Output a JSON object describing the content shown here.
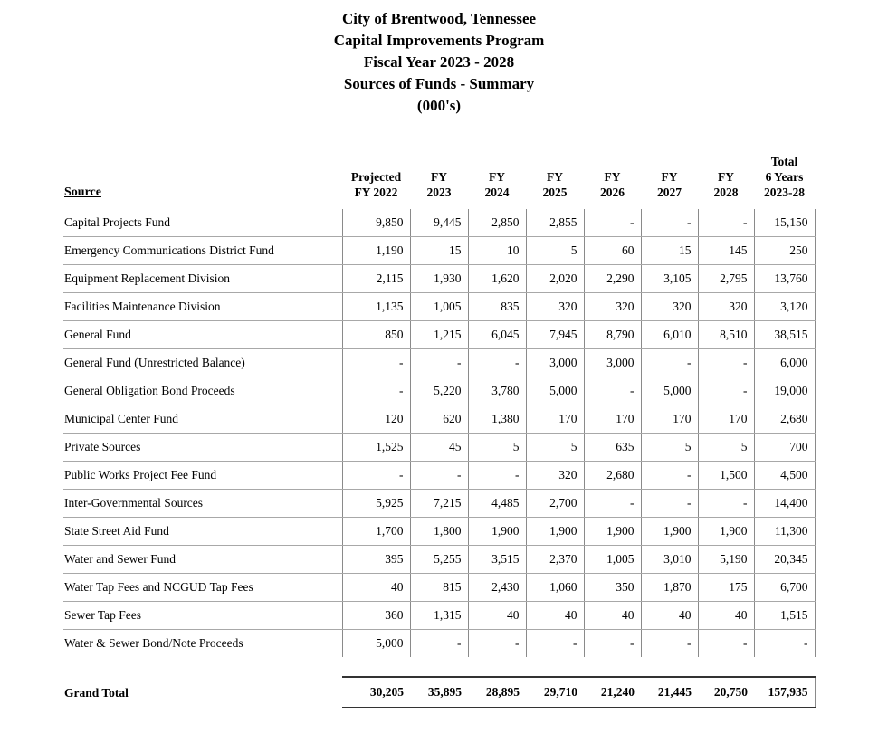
{
  "title": {
    "line1": "City of Brentwood, Tennessee",
    "line2": "Capital Improvements Program",
    "line3": "Fiscal Year 2023 - 2028",
    "line4": "Sources of Funds - Summary",
    "line5": "(000's)"
  },
  "table": {
    "source_header": "Source",
    "columns": [
      [
        "Projected",
        "FY 2022"
      ],
      [
        "FY",
        "2023"
      ],
      [
        "FY",
        "2024"
      ],
      [
        "FY",
        "2025"
      ],
      [
        "FY",
        "2026"
      ],
      [
        "FY",
        "2027"
      ],
      [
        "FY",
        "2028"
      ],
      [
        "Total",
        "6 Years",
        "2023-28"
      ]
    ],
    "rows": [
      {
        "label": "Capital Projects Fund",
        "values": [
          "9,850",
          "9,445",
          "2,850",
          "2,855",
          "-",
          "-",
          "-",
          "15,150"
        ]
      },
      {
        "label": "Emergency Communications District Fund",
        "values": [
          "1,190",
          "15",
          "10",
          "5",
          "60",
          "15",
          "145",
          "250"
        ]
      },
      {
        "label": "Equipment Replacement Division",
        "values": [
          "2,115",
          "1,930",
          "1,620",
          "2,020",
          "2,290",
          "3,105",
          "2,795",
          "13,760"
        ]
      },
      {
        "label": "Facilities Maintenance Division",
        "values": [
          "1,135",
          "1,005",
          "835",
          "320",
          "320",
          "320",
          "320",
          "3,120"
        ]
      },
      {
        "label": "General Fund",
        "values": [
          "850",
          "1,215",
          "6,045",
          "7,945",
          "8,790",
          "6,010",
          "8,510",
          "38,515"
        ]
      },
      {
        "label": "General Fund (Unrestricted Balance)",
        "values": [
          "-",
          "-",
          "-",
          "3,000",
          "3,000",
          "-",
          "-",
          "6,000"
        ]
      },
      {
        "label": "General Obligation Bond Proceeds",
        "values": [
          "-",
          "5,220",
          "3,780",
          "5,000",
          "-",
          "5,000",
          "-",
          "19,000"
        ]
      },
      {
        "label": "Municipal Center Fund",
        "values": [
          "120",
          "620",
          "1,380",
          "170",
          "170",
          "170",
          "170",
          "2,680"
        ]
      },
      {
        "label": "Private Sources",
        "values": [
          "1,525",
          "45",
          "5",
          "5",
          "635",
          "5",
          "5",
          "700"
        ]
      },
      {
        "label": "Public Works Project Fee Fund",
        "values": [
          "-",
          "-",
          "-",
          "320",
          "2,680",
          "-",
          "1,500",
          "4,500"
        ]
      },
      {
        "label": "Inter-Governmental Sources",
        "values": [
          "5,925",
          "7,215",
          "4,485",
          "2,700",
          "-",
          "-",
          "-",
          "14,400"
        ]
      },
      {
        "label": "State Street Aid Fund",
        "values": [
          "1,700",
          "1,800",
          "1,900",
          "1,900",
          "1,900",
          "1,900",
          "1,900",
          "11,300"
        ]
      },
      {
        "label": "Water and Sewer Fund",
        "values": [
          "395",
          "5,255",
          "3,515",
          "2,370",
          "1,005",
          "3,010",
          "5,190",
          "20,345"
        ]
      },
      {
        "label": "Water Tap Fees and NCGUD Tap Fees",
        "values": [
          "40",
          "815",
          "2,430",
          "1,060",
          "350",
          "1,870",
          "175",
          "6,700"
        ]
      },
      {
        "label": "Sewer Tap Fees",
        "values": [
          "360",
          "1,315",
          "40",
          "40",
          "40",
          "40",
          "40",
          "1,515"
        ]
      },
      {
        "label": "Water & Sewer Bond/Note Proceeds",
        "values": [
          "5,000",
          "-",
          "-",
          "-",
          "-",
          "-",
          "-",
          "-"
        ]
      }
    ],
    "grand_total": {
      "label": "Grand Total",
      "values": [
        "30,205",
        "35,895",
        "28,895",
        "29,710",
        "21,240",
        "21,445",
        "20,750",
        "157,935"
      ]
    }
  },
  "colors": {
    "text": "#000000",
    "row_line": "#a8a8a8",
    "column_line": "#8a8a8a",
    "total_line": "#333333",
    "background": "#ffffff"
  }
}
